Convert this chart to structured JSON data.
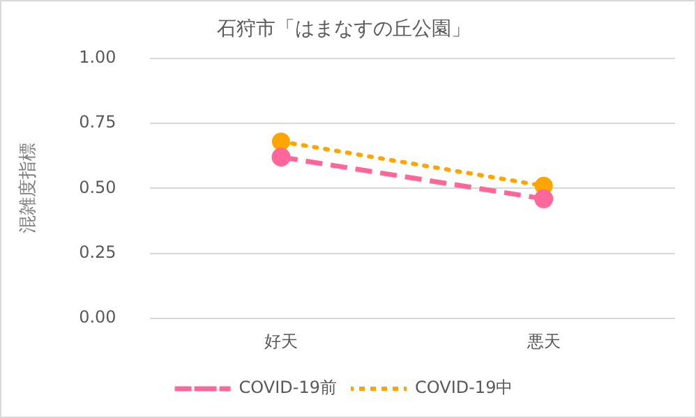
{
  "chart_data": {
    "type": "line",
    "title": "石狩市「はまなすの丘公園」",
    "ylabel": "混雑度指標",
    "categories": [
      "好天",
      "悪天"
    ],
    "series": [
      {
        "name": "COVID-19前",
        "color": "#ff6699",
        "values": [
          0.62,
          0.46
        ],
        "line_style": "dashed"
      },
      {
        "name": "COVID-19中",
        "color": "#ffa500",
        "values": [
          0.68,
          0.51
        ],
        "line_style": "dotted"
      }
    ],
    "ylim": [
      0,
      1
    ],
    "yticks": [
      {
        "value": 0,
        "label": "0.00"
      },
      {
        "value": 0.25,
        "label": "0.25"
      },
      {
        "value": 0.5,
        "label": "0.50"
      },
      {
        "value": 0.75,
        "label": "0.75"
      },
      {
        "value": 1,
        "label": "1.00"
      }
    ],
    "grid": "y",
    "legend": "bottom",
    "marker": "circle"
  }
}
